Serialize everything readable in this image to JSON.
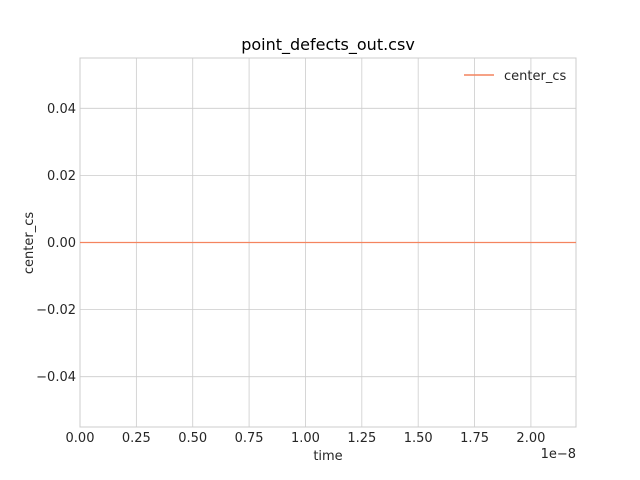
{
  "chart_data": {
    "type": "line",
    "title": "point_defects_out.csv",
    "xlabel": "time",
    "ylabel": "center_cs",
    "x_offset_text": "1e−8",
    "xlim": [
      0,
      2.2
    ],
    "ylim": [
      -0.055,
      0.055
    ],
    "x_ticks": [
      0.0,
      0.25,
      0.5,
      0.75,
      1.0,
      1.25,
      1.5,
      1.75,
      2.0
    ],
    "x_tick_labels": [
      "0.00",
      "0.25",
      "0.50",
      "0.75",
      "1.00",
      "1.25",
      "1.50",
      "1.75",
      "2.00"
    ],
    "y_ticks": [
      -0.04,
      -0.02,
      0.0,
      0.02,
      0.04
    ],
    "y_tick_labels": [
      "−0.04",
      "−0.02",
      "0.00",
      "0.02",
      "0.04"
    ],
    "grid": true,
    "legend_position": "upper right",
    "series": [
      {
        "name": "center_cs",
        "color": "#f4845f",
        "x": [
          0.0,
          2.2
        ],
        "y": [
          0.0,
          0.0
        ]
      }
    ]
  }
}
